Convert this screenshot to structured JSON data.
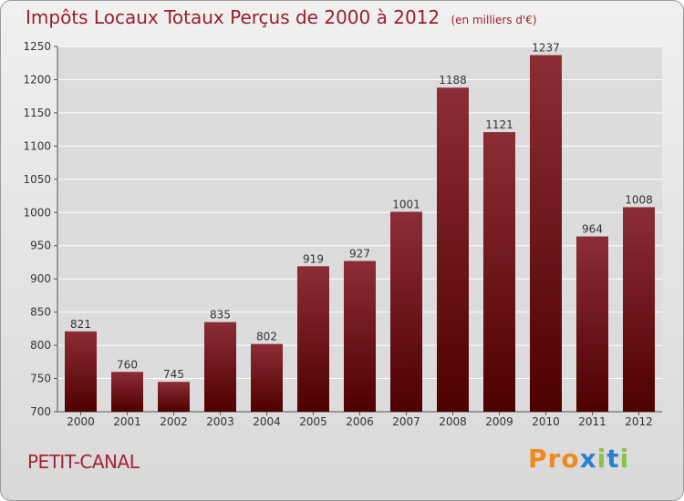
{
  "title": "Impôts Locaux Totaux Perçus de 2000 à 2012",
  "subtitle": "(en milliers d'€)",
  "place": "PETIT-CANAL",
  "logo": {
    "text": "Proxiti",
    "letters": [
      "P",
      "r",
      "o",
      "x",
      "i",
      "t",
      "i"
    ]
  },
  "colors": {
    "bar_top": "#8c2d36",
    "bar_bottom": "#4e0000",
    "title": "#9c1e2e",
    "grid": "#ffffff",
    "logo": [
      "#f08a1c",
      "#f08a1c",
      "#f08a1c",
      "#2a7fd0",
      "#8ac24a",
      "#2a7fd0",
      "#8ac24a"
    ]
  },
  "chart_data": {
    "type": "bar",
    "title": "Impôts Locaux Totaux Perçus de 2000 à 2012",
    "xlabel": "",
    "ylabel": "(en milliers d'€)",
    "categories": [
      "2000",
      "2001",
      "2002",
      "2003",
      "2004",
      "2005",
      "2006",
      "2007",
      "2008",
      "2009",
      "2010",
      "2011",
      "2012"
    ],
    "values": [
      821,
      760,
      745,
      835,
      802,
      919,
      927,
      1001,
      1188,
      1121,
      1237,
      964,
      1008
    ],
    "value_labels": [
      "821",
      "760",
      "745",
      "835",
      "802",
      "919",
      "927",
      "1001",
      "1188",
      "1121",
      "1237",
      "964",
      "1008"
    ],
    "ylim": [
      700,
      1250
    ],
    "yticks": [
      700,
      750,
      800,
      850,
      900,
      950,
      1000,
      1050,
      1100,
      1150,
      1200,
      1250
    ],
    "ytick_labels": [
      "700",
      "750",
      "800",
      "850",
      "900",
      "950",
      "1000",
      "1050",
      "1100",
      "1150",
      "1200",
      "1250"
    ],
    "grid": true
  }
}
